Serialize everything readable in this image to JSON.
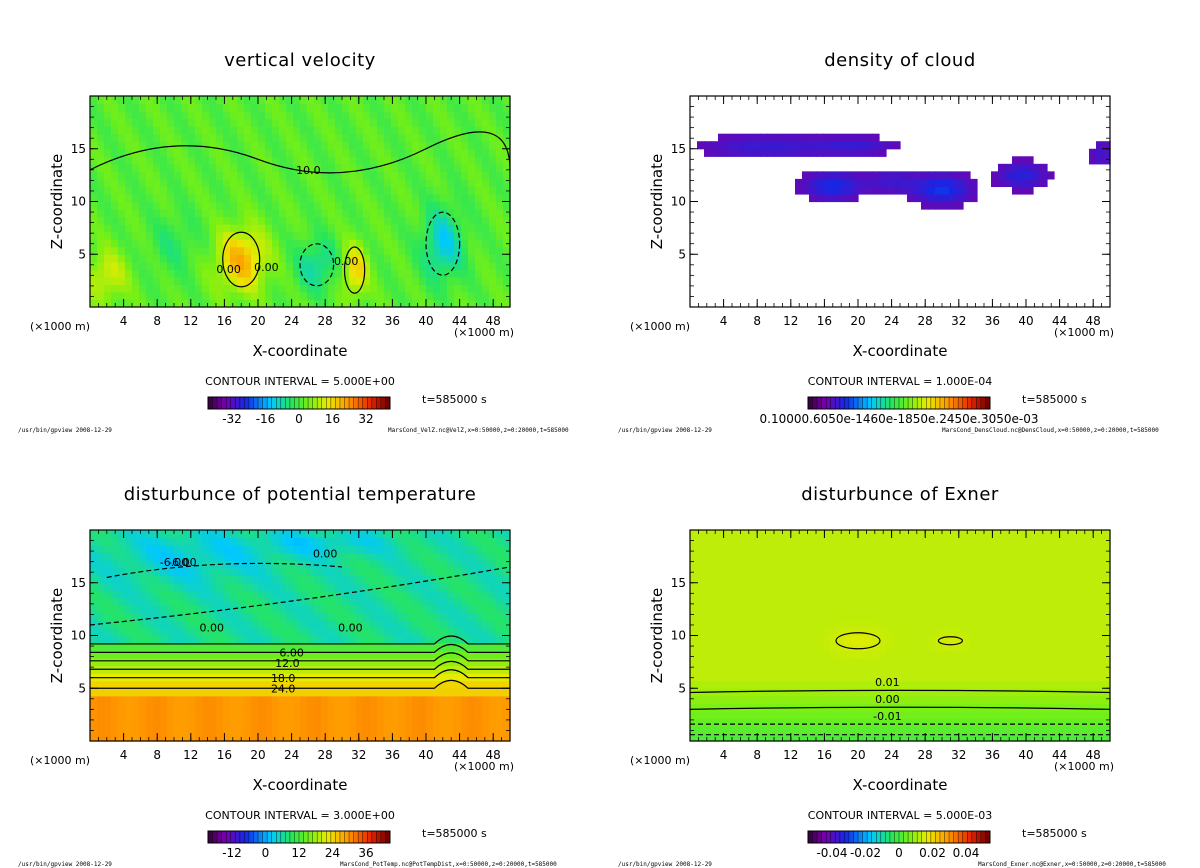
{
  "footer_left": "/usr/bin/gpview  2008-12-29",
  "chart_data": [
    {
      "type": "heatmap",
      "title": "vertical velocity",
      "xlabel": "X-coordinate",
      "ylabel": "Z-coordinate",
      "x_unit": "(×1000 m)",
      "xticks": [
        4,
        8,
        12,
        16,
        20,
        24,
        28,
        32,
        36,
        40,
        44,
        48
      ],
      "yticks": [
        5,
        10,
        15
      ],
      "xlim": [
        0,
        50
      ],
      "ylim": [
        0,
        20
      ],
      "contour_interval": "CONTOUR INTERVAL = 5.000E+00",
      "time": "t=585000 s",
      "colorbar_ticks": [
        "-32",
        "-16",
        "0",
        "16",
        "32"
      ],
      "contour_labels": [
        "0.00",
        "0.00",
        "10.0",
        "0.00"
      ],
      "footer_right": "MarsCond_VelZ.nc@VelZ,x=0:50000,z=0:20000,t=585000",
      "field": "vel"
    },
    {
      "type": "heatmap",
      "title": "density of cloud",
      "xlabel": "X-coordinate",
      "ylabel": "Z-coordinate",
      "x_unit": "(×1000 m)",
      "xticks": [
        4,
        8,
        12,
        16,
        20,
        24,
        28,
        32,
        36,
        40,
        44,
        48
      ],
      "yticks": [
        5,
        10,
        15
      ],
      "xlim": [
        0,
        50
      ],
      "ylim": [
        0,
        20
      ],
      "contour_interval": "CONTOUR INTERVAL = 1.000E-04",
      "time": "t=585000 s",
      "colorbar_ticks": [
        "0.10000.6050e-1460e-1850e.2450e.3050e-03"
      ],
      "contour_labels": [],
      "footer_right": "MarsCond_DensCloud.nc@DensCloud,x=0:50000,z=0:20000,t=585000",
      "field": "cloud"
    },
    {
      "type": "heatmap",
      "title": "disturbunce of potential temperature",
      "xlabel": "X-coordinate",
      "ylabel": "Z-coordinate",
      "x_unit": "(×1000 m)",
      "xticks": [
        4,
        8,
        12,
        16,
        20,
        24,
        28,
        32,
        36,
        40,
        44,
        48
      ],
      "yticks": [
        5,
        10,
        15
      ],
      "xlim": [
        0,
        50
      ],
      "ylim": [
        0,
        20
      ],
      "contour_interval": "CONTOUR INTERVAL = 3.000E+00",
      "time": "t=585000 s",
      "colorbar_ticks": [
        "-12",
        "0",
        "12",
        "24",
        "36"
      ],
      "contour_labels": [
        "-6.00",
        "-6.00",
        "0.00",
        "0.00",
        "0.00",
        "6.00",
        "12.0",
        "18.0",
        "24.0"
      ],
      "footer_right": "MarsCond_PotTemp.nc@PotTempDist,x=0:50000,z=0:20000,t=585000",
      "field": "temp"
    },
    {
      "type": "heatmap",
      "title": "disturbunce of Exner",
      "xlabel": "X-coordinate",
      "ylabel": "Z-coordinate",
      "x_unit": "(×1000 m)",
      "xticks": [
        4,
        8,
        12,
        16,
        20,
        24,
        28,
        32,
        36,
        40,
        44,
        48
      ],
      "yticks": [
        5,
        10,
        15
      ],
      "xlim": [
        0,
        50
      ],
      "ylim": [
        0,
        20
      ],
      "contour_interval": "CONTOUR INTERVAL = 5.000E-03",
      "time": "t=585000 s",
      "colorbar_ticks": [
        "-0.04",
        "-0.02",
        "0",
        "0.02",
        "0.04"
      ],
      "contour_labels": [
        "0.01",
        "0.00",
        "-0.01"
      ],
      "footer_right": "MarsCond_Exner.nc@Exner,x=0:50000,z=0:20000,t=585000",
      "field": "exner"
    }
  ]
}
